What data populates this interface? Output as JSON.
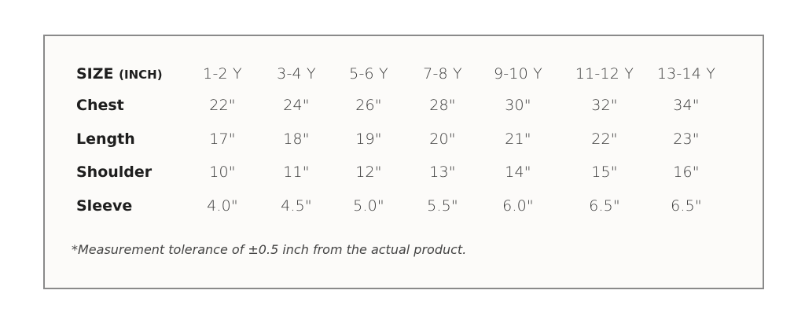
{
  "table": {
    "header_label": "SIZE",
    "header_unit": "(INCH)",
    "columns": [
      "1-2 Y",
      "3-4 Y",
      "5-6 Y",
      "7-8 Y",
      "9-10 Y",
      "11-12 Y",
      "13-14 Y"
    ],
    "rows": [
      {
        "label": "Chest",
        "values": [
          "22\"",
          "24\"",
          "26\"",
          "28\"",
          "30\"",
          "32\"",
          "34\""
        ]
      },
      {
        "label": "Length",
        "values": [
          "17\"",
          "18\"",
          "19\"",
          "20\"",
          "21\"",
          "22\"",
          "23\""
        ]
      },
      {
        "label": "Shoulder",
        "values": [
          "10\"",
          "11\"",
          "12\"",
          "13\"",
          "14\"",
          "15\"",
          "16\""
        ]
      },
      {
        "label": "Sleeve",
        "values": [
          "4.0\"",
          "4.5\"",
          "5.0\"",
          "5.5\"",
          "6.0\"",
          "6.5\"",
          "6.5\""
        ]
      }
    ]
  },
  "footnote": "*Measurement tolerance of ±0.5 inch from the actual product."
}
